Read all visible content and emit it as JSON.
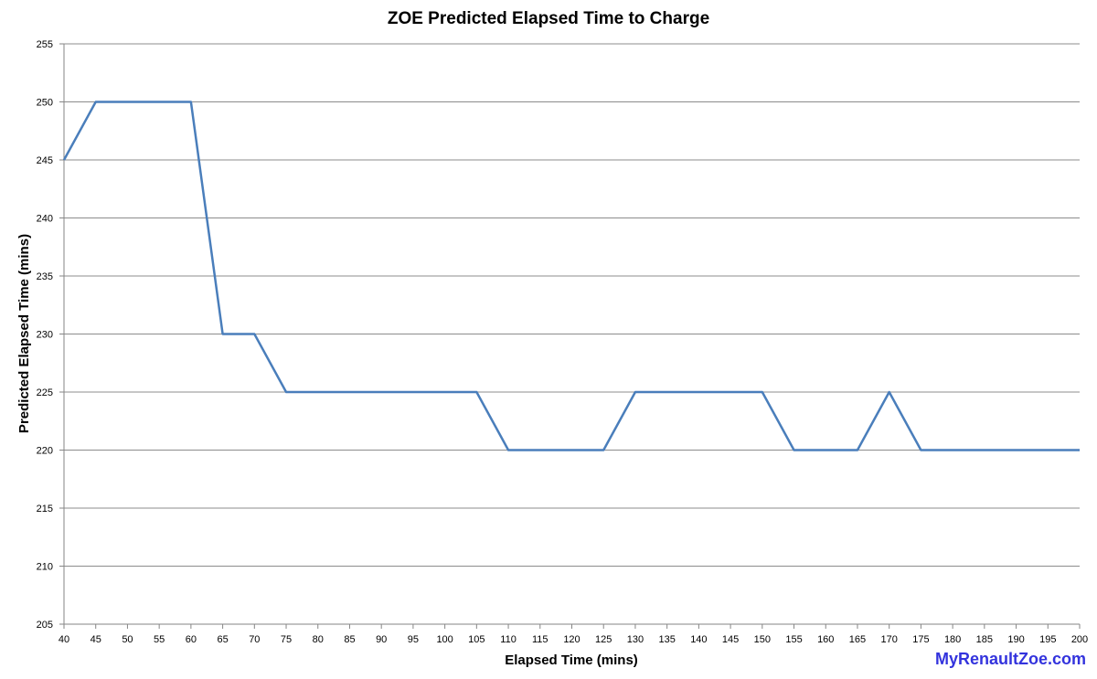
{
  "chart_data": {
    "type": "line",
    "title": "ZOE Predicted Elapsed Time to Charge",
    "xlabel": "Elapsed Time (mins)",
    "ylabel": "Predicted Elapsed Time (mins)",
    "xlim": [
      40,
      200
    ],
    "ylim": [
      205,
      255
    ],
    "x_ticks": [
      40,
      45,
      50,
      55,
      60,
      65,
      70,
      75,
      80,
      85,
      90,
      95,
      100,
      105,
      110,
      115,
      120,
      125,
      130,
      135,
      140,
      145,
      150,
      155,
      160,
      165,
      170,
      175,
      180,
      185,
      190,
      195,
      200
    ],
    "y_ticks": [
      205,
      210,
      215,
      220,
      225,
      230,
      235,
      240,
      245,
      250,
      255
    ],
    "grid": true,
    "legend": "none",
    "series": [
      {
        "color": "#4a7ebb",
        "x": [
          40,
          45,
          50,
          55,
          60,
          65,
          70,
          75,
          80,
          85,
          90,
          95,
          100,
          105,
          110,
          115,
          120,
          125,
          130,
          135,
          140,
          145,
          150,
          155,
          160,
          165,
          170,
          175,
          180,
          185,
          190,
          195,
          200
        ],
        "values": [
          245,
          250,
          250,
          250,
          250,
          230,
          230,
          225,
          225,
          225,
          225,
          225,
          225,
          225,
          220,
          220,
          220,
          220,
          225,
          225,
          225,
          225,
          225,
          220,
          220,
          220,
          225,
          220,
          220,
          220,
          220,
          220,
          220
        ]
      }
    ]
  },
  "watermark": "MyRenaultZoe.com"
}
